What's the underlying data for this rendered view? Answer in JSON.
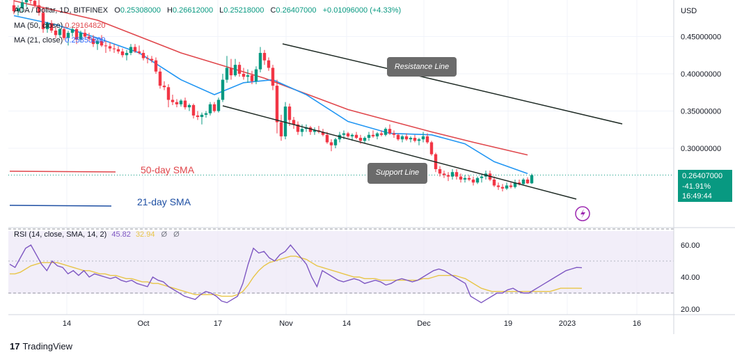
{
  "header": {
    "symbol": "ADA / Dollar, 1D, BITFINEX",
    "open_label": "O",
    "open": "0.25308000",
    "high_label": "H",
    "high": "0.26612000",
    "low_label": "L",
    "low": "0.25218000",
    "close_label": "C",
    "close": "0.26407000",
    "change": "+0.01096000 (+4.33%)",
    "ma1_label": "MA (50, close)",
    "ma1_value": "0.29164820",
    "ma2_label": "MA (21, close)",
    "ma2_value": "0.25853390"
  },
  "price_axis": {
    "currency": "USD",
    "ticks": [
      "0.45000000",
      "0.40000000",
      "0.35000000",
      "0.30000000"
    ]
  },
  "price_badge": {
    "price": "0.26407000",
    "change": "-41.91%",
    "countdown": "16:49:44"
  },
  "annotations": {
    "sma50_label": "50-day SMA",
    "sma21_label": "21-day SMA",
    "resistance_label": "Resistance Line",
    "support_label": "Support Line"
  },
  "rsi": {
    "label": "RSI (14, close, SMA, 14, 2)",
    "value": "45.82",
    "sma_value": "32.94",
    "icon1": "Ø",
    "icon2": "Ø",
    "ticks": [
      "60.00",
      "40.00",
      "20.00"
    ]
  },
  "time_axis": {
    "ticks": [
      "14",
      "Oct",
      "17",
      "Nov",
      "14",
      "Dec",
      "19",
      "2023",
      "16"
    ]
  },
  "branding": {
    "logo_mark": "17",
    "name": "TradingView"
  },
  "colors": {
    "up": "#089981",
    "down": "#f23645",
    "sma50": "#e0474c",
    "sma21": "#2196f3",
    "rsi_line": "#7e57c2",
    "rsi_sma": "#e8c547",
    "channel": "#1e2a24",
    "rsi_band": "#ede7f6"
  },
  "chart_data": {
    "type": "candlestick",
    "ylim": [
      0.22,
      0.5
    ],
    "x_range": [
      "2022-09-06",
      "2023-01-23"
    ],
    "ohlc": [
      [
        "2022-09-06",
        0.492,
        0.5,
        0.48,
        0.484
      ],
      [
        "2022-09-07",
        0.484,
        0.492,
        0.478,
        0.488
      ],
      [
        "2022-09-08",
        0.488,
        0.5,
        0.482,
        0.496
      ],
      [
        "2022-09-09",
        0.496,
        0.505,
        0.49,
        0.501
      ],
      [
        "2022-09-10",
        0.501,
        0.506,
        0.494,
        0.498
      ],
      [
        "2022-09-11",
        0.498,
        0.503,
        0.488,
        0.492
      ],
      [
        "2022-09-12",
        0.492,
        0.5,
        0.478,
        0.482
      ],
      [
        "2022-09-13",
        0.482,
        0.49,
        0.455,
        0.46
      ],
      [
        "2022-09-14",
        0.46,
        0.47,
        0.455,
        0.468
      ],
      [
        "2022-09-15",
        0.468,
        0.472,
        0.455,
        0.458
      ],
      [
        "2022-09-16",
        0.458,
        0.462,
        0.448,
        0.452
      ],
      [
        "2022-09-17",
        0.452,
        0.462,
        0.448,
        0.46
      ],
      [
        "2022-09-18",
        0.46,
        0.464,
        0.445,
        0.448
      ],
      [
        "2022-09-19",
        0.448,
        0.458,
        0.438,
        0.455
      ],
      [
        "2022-09-20",
        0.455,
        0.464,
        0.45,
        0.46
      ],
      [
        "2022-09-21",
        0.46,
        0.462,
        0.44,
        0.446
      ],
      [
        "2022-09-22",
        0.446,
        0.458,
        0.442,
        0.455
      ],
      [
        "2022-09-23",
        0.455,
        0.46,
        0.448,
        0.45
      ],
      [
        "2022-09-24",
        0.45,
        0.455,
        0.444,
        0.447
      ],
      [
        "2022-09-25",
        0.447,
        0.452,
        0.436,
        0.44
      ],
      [
        "2022-09-26",
        0.44,
        0.448,
        0.432,
        0.444
      ],
      [
        "2022-09-27",
        0.444,
        0.452,
        0.436,
        0.438
      ],
      [
        "2022-09-28",
        0.438,
        0.444,
        0.428,
        0.437
      ],
      [
        "2022-09-29",
        0.437,
        0.442,
        0.43,
        0.434
      ],
      [
        "2022-09-30",
        0.434,
        0.44,
        0.428,
        0.433
      ],
      [
        "2022-10-01",
        0.433,
        0.437,
        0.427,
        0.43
      ],
      [
        "2022-10-02",
        0.43,
        0.434,
        0.422,
        0.425
      ],
      [
        "2022-10-03",
        0.425,
        0.432,
        0.418,
        0.428
      ],
      [
        "2022-10-04",
        0.428,
        0.44,
        0.425,
        0.436
      ],
      [
        "2022-10-05",
        0.436,
        0.44,
        0.428,
        0.43
      ],
      [
        "2022-10-06",
        0.43,
        0.438,
        0.426,
        0.428
      ],
      [
        "2022-10-07",
        0.428,
        0.432,
        0.418,
        0.421
      ],
      [
        "2022-10-08",
        0.421,
        0.425,
        0.414,
        0.42
      ],
      [
        "2022-10-09",
        0.42,
        0.424,
        0.415,
        0.418
      ],
      [
        "2022-10-10",
        0.418,
        0.422,
        0.4,
        0.403
      ],
      [
        "2022-10-11",
        0.403,
        0.408,
        0.38,
        0.384
      ],
      [
        "2022-10-12",
        0.384,
        0.39,
        0.378,
        0.382
      ],
      [
        "2022-10-13",
        0.382,
        0.386,
        0.355,
        0.365
      ],
      [
        "2022-10-14",
        0.365,
        0.372,
        0.358,
        0.362
      ],
      [
        "2022-10-15",
        0.362,
        0.366,
        0.355,
        0.359
      ],
      [
        "2022-10-16",
        0.359,
        0.366,
        0.356,
        0.364
      ],
      [
        "2022-10-17",
        0.364,
        0.368,
        0.352,
        0.355
      ],
      [
        "2022-10-18",
        0.355,
        0.36,
        0.35,
        0.358
      ],
      [
        "2022-10-19",
        0.358,
        0.36,
        0.34,
        0.344
      ],
      [
        "2022-10-20",
        0.344,
        0.35,
        0.338,
        0.342
      ],
      [
        "2022-10-21",
        0.342,
        0.348,
        0.332,
        0.345
      ],
      [
        "2022-10-22",
        0.345,
        0.35,
        0.341,
        0.347
      ],
      [
        "2022-10-23",
        0.347,
        0.362,
        0.344,
        0.359
      ],
      [
        "2022-10-24",
        0.359,
        0.362,
        0.348,
        0.35
      ],
      [
        "2022-10-25",
        0.35,
        0.368,
        0.348,
        0.365
      ],
      [
        "2022-10-26",
        0.365,
        0.4,
        0.362,
        0.392
      ],
      [
        "2022-10-27",
        0.392,
        0.424,
        0.388,
        0.408
      ],
      [
        "2022-10-28",
        0.408,
        0.42,
        0.392,
        0.398
      ],
      [
        "2022-10-29",
        0.398,
        0.42,
        0.396,
        0.412
      ],
      [
        "2022-10-30",
        0.412,
        0.416,
        0.396,
        0.4
      ],
      [
        "2022-10-31",
        0.4,
        0.408,
        0.392,
        0.396
      ],
      [
        "2022-11-01",
        0.396,
        0.406,
        0.388,
        0.398
      ],
      [
        "2022-11-02",
        0.398,
        0.404,
        0.386,
        0.39
      ],
      [
        "2022-11-03",
        0.39,
        0.41,
        0.386,
        0.406
      ],
      [
        "2022-11-04",
        0.406,
        0.436,
        0.402,
        0.428
      ],
      [
        "2022-11-05",
        0.428,
        0.432,
        0.412,
        0.418
      ],
      [
        "2022-11-06",
        0.418,
        0.422,
        0.404,
        0.408
      ],
      [
        "2022-11-07",
        0.408,
        0.412,
        0.378,
        0.384
      ],
      [
        "2022-11-08",
        0.384,
        0.392,
        0.32,
        0.335
      ],
      [
        "2022-11-09",
        0.335,
        0.345,
        0.31,
        0.316
      ],
      [
        "2022-11-10",
        0.316,
        0.362,
        0.312,
        0.356
      ],
      [
        "2022-11-11",
        0.356,
        0.36,
        0.33,
        0.338
      ],
      [
        "2022-11-12",
        0.338,
        0.342,
        0.326,
        0.332
      ],
      [
        "2022-11-13",
        0.332,
        0.336,
        0.318,
        0.322
      ],
      [
        "2022-11-14",
        0.322,
        0.332,
        0.316,
        0.326
      ],
      [
        "2022-11-15",
        0.326,
        0.332,
        0.322,
        0.328
      ],
      [
        "2022-11-16",
        0.328,
        0.33,
        0.318,
        0.322
      ],
      [
        "2022-11-17",
        0.322,
        0.328,
        0.318,
        0.324
      ],
      [
        "2022-11-18",
        0.324,
        0.33,
        0.32,
        0.322
      ],
      [
        "2022-11-19",
        0.322,
        0.326,
        0.316,
        0.318
      ],
      [
        "2022-11-20",
        0.318,
        0.322,
        0.306,
        0.308
      ],
      [
        "2022-11-21",
        0.308,
        0.312,
        0.296,
        0.304
      ],
      [
        "2022-11-22",
        0.304,
        0.314,
        0.3,
        0.312
      ],
      [
        "2022-11-23",
        0.312,
        0.322,
        0.308,
        0.318
      ],
      [
        "2022-11-24",
        0.318,
        0.324,
        0.312,
        0.32
      ],
      [
        "2022-11-25",
        0.32,
        0.322,
        0.314,
        0.316
      ],
      [
        "2022-11-26",
        0.316,
        0.32,
        0.31,
        0.318
      ],
      [
        "2022-11-27",
        0.318,
        0.322,
        0.312,
        0.314
      ],
      [
        "2022-11-28",
        0.314,
        0.318,
        0.306,
        0.31
      ],
      [
        "2022-11-29",
        0.31,
        0.316,
        0.306,
        0.314
      ],
      [
        "2022-11-30",
        0.314,
        0.322,
        0.31,
        0.318
      ],
      [
        "2022-12-01",
        0.318,
        0.324,
        0.314,
        0.316
      ],
      [
        "2022-12-02",
        0.316,
        0.322,
        0.312,
        0.32
      ],
      [
        "2022-12-03",
        0.32,
        0.324,
        0.316,
        0.318
      ],
      [
        "2022-12-04",
        0.318,
        0.328,
        0.316,
        0.326
      ],
      [
        "2022-12-05",
        0.326,
        0.332,
        0.318,
        0.32
      ],
      [
        "2022-12-06",
        0.32,
        0.324,
        0.314,
        0.318
      ],
      [
        "2022-12-07",
        0.318,
        0.32,
        0.31,
        0.312
      ],
      [
        "2022-12-08",
        0.312,
        0.318,
        0.308,
        0.316
      ],
      [
        "2022-12-09",
        0.316,
        0.32,
        0.31,
        0.312
      ],
      [
        "2022-12-10",
        0.312,
        0.316,
        0.308,
        0.314
      ],
      [
        "2022-12-11",
        0.314,
        0.318,
        0.308,
        0.31
      ],
      [
        "2022-12-12",
        0.31,
        0.314,
        0.304,
        0.312
      ],
      [
        "2022-12-13",
        0.312,
        0.322,
        0.308,
        0.316
      ],
      [
        "2022-12-14",
        0.316,
        0.32,
        0.306,
        0.308
      ],
      [
        "2022-12-15",
        0.308,
        0.31,
        0.29,
        0.292
      ],
      [
        "2022-12-16",
        0.292,
        0.294,
        0.268,
        0.272
      ],
      [
        "2022-12-17",
        0.272,
        0.276,
        0.262,
        0.266
      ],
      [
        "2022-12-18",
        0.266,
        0.27,
        0.26,
        0.264
      ],
      [
        "2022-12-19",
        0.264,
        0.268,
        0.256,
        0.262
      ],
      [
        "2022-12-20",
        0.262,
        0.272,
        0.258,
        0.268
      ],
      [
        "2022-12-21",
        0.268,
        0.272,
        0.258,
        0.262
      ],
      [
        "2022-12-22",
        0.262,
        0.266,
        0.254,
        0.258
      ],
      [
        "2022-12-23",
        0.258,
        0.264,
        0.254,
        0.26
      ],
      [
        "2022-12-24",
        0.26,
        0.264,
        0.256,
        0.258
      ],
      [
        "2022-12-25",
        0.258,
        0.262,
        0.25,
        0.254
      ],
      [
        "2022-12-26",
        0.254,
        0.262,
        0.252,
        0.26
      ],
      [
        "2022-12-27",
        0.26,
        0.264,
        0.254,
        0.262
      ],
      [
        "2022-12-28",
        0.262,
        0.27,
        0.258,
        0.266
      ],
      [
        "2022-12-29",
        0.266,
        0.27,
        0.256,
        0.258
      ],
      [
        "2022-12-30",
        0.258,
        0.262,
        0.248,
        0.25
      ],
      [
        "2022-12-31",
        0.25,
        0.254,
        0.244,
        0.248
      ],
      [
        "2023-01-01",
        0.248,
        0.252,
        0.242,
        0.246
      ],
      [
        "2023-01-02",
        0.246,
        0.254,
        0.244,
        0.25
      ],
      [
        "2023-01-03",
        0.25,
        0.254,
        0.246,
        0.248
      ],
      [
        "2023-01-04",
        0.248,
        0.258,
        0.246,
        0.254
      ],
      [
        "2023-01-05",
        0.254,
        0.258,
        0.25,
        0.252
      ],
      [
        "2023-01-06",
        0.252,
        0.26,
        0.25,
        0.258
      ],
      [
        "2023-01-07",
        0.258,
        0.261,
        0.252,
        0.253
      ],
      [
        "2023-01-08",
        0.253,
        0.266,
        0.252,
        0.264
      ]
    ],
    "sma50": [
      [
        0,
        0.498
      ],
      [
        20,
        0.472
      ],
      [
        40,
        0.428
      ],
      [
        60,
        0.394
      ],
      [
        80,
        0.352
      ],
      [
        100,
        0.322
      ],
      [
        110,
        0.308
      ],
      [
        123,
        0.291
      ]
    ],
    "sma21": [
      [
        0,
        0.478
      ],
      [
        10,
        0.466
      ],
      [
        20,
        0.448
      ],
      [
        30,
        0.428
      ],
      [
        40,
        0.392
      ],
      [
        48,
        0.372
      ],
      [
        55,
        0.388
      ],
      [
        62,
        0.392
      ],
      [
        70,
        0.372
      ],
      [
        80,
        0.336
      ],
      [
        90,
        0.32
      ],
      [
        100,
        0.318
      ],
      [
        108,
        0.306
      ],
      [
        115,
        0.282
      ],
      [
        123,
        0.266
      ]
    ],
    "resistance_line": [
      [
        26,
        0.448
      ],
      [
        138,
        0.345
      ]
    ],
    "support_line": [
      [
        30,
        0.358
      ],
      [
        138,
        0.238
      ]
    ],
    "rsi": {
      "ylim": [
        20,
        70
      ],
      "rsi_values": [
        48,
        46,
        52,
        58,
        60,
        54,
        48,
        44,
        50,
        47,
        46,
        42,
        44,
        41,
        44,
        40,
        42,
        41,
        40,
        39,
        40,
        38,
        37,
        38,
        36,
        35,
        34,
        40,
        38,
        37,
        34,
        32,
        30,
        28,
        27,
        26,
        29,
        31,
        30,
        28,
        25,
        24,
        26,
        28,
        36,
        48,
        58,
        55,
        56,
        52,
        50,
        54,
        56,
        60,
        56,
        52,
        48,
        40,
        34,
        44,
        42,
        40,
        38,
        37,
        38,
        39,
        38,
        36,
        37,
        38,
        37,
        35,
        36,
        38,
        39,
        38,
        37,
        38,
        40,
        42,
        44,
        45,
        44,
        42,
        40,
        38,
        36,
        28,
        26,
        24,
        26,
        28,
        30,
        30,
        32,
        33,
        31,
        30,
        30,
        32,
        34,
        36,
        38,
        40,
        42,
        44,
        45,
        46,
        45.82
      ],
      "sma_values": [
        42,
        42,
        43,
        45,
        47,
        48,
        49,
        49,
        49,
        49,
        48,
        47,
        46,
        45,
        44,
        44,
        43,
        42,
        42,
        41,
        41,
        40,
        39,
        39,
        38,
        37,
        37,
        36,
        36,
        35,
        34,
        33,
        32,
        31,
        30,
        29,
        29,
        29,
        29,
        29,
        28,
        28,
        28,
        29,
        31,
        35,
        40,
        44,
        47,
        49,
        50,
        51,
        52,
        53,
        53,
        52,
        51,
        49,
        47,
        46,
        45,
        44,
        43,
        42,
        41,
        40,
        40,
        39,
        39,
        39,
        38,
        38,
        38,
        38,
        38,
        38,
        38,
        38,
        39,
        39,
        40,
        41,
        41,
        41,
        41,
        40,
        39,
        37,
        35,
        33,
        32,
        31,
        31,
        31,
        31,
        31,
        31,
        31,
        31,
        31,
        31,
        31,
        31,
        32,
        33,
        33,
        33,
        33,
        32.94
      ]
    }
  }
}
